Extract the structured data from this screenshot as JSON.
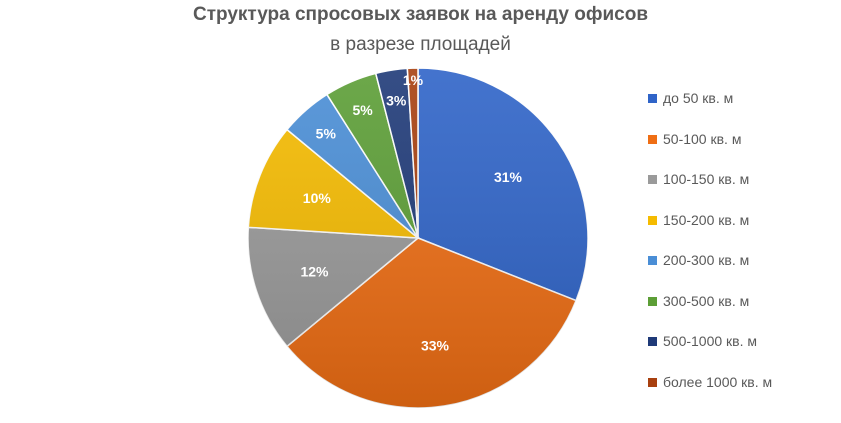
{
  "chart_data": {
    "type": "pie",
    "title": "Структура спросовых заявок на аренду офисов",
    "subtitle": "в разрезе площадей",
    "slices": [
      {
        "label": "до 50 кв. м",
        "value": 31,
        "display": "31%",
        "color": "#2f64c8"
      },
      {
        "label": "50-100 кв. м",
        "value": 33,
        "display": "33%",
        "color": "#ef6e14"
      },
      {
        "label": "100-150 кв. м",
        "value": 12,
        "display": "12%",
        "color": "#9a9a9a"
      },
      {
        "label": "150-200 кв. м",
        "value": 10,
        "display": "10%",
        "color": "#f5bb00"
      },
      {
        "label": "200-300 кв. м",
        "value": 5,
        "display": "5%",
        "color": "#4a8ed6"
      },
      {
        "label": "300-500 кв. м",
        "value": 5,
        "display": "5%",
        "color": "#5c9e36"
      },
      {
        "label": "500-1000 кв. м",
        "value": 3,
        "display": "3%",
        "color": "#1f3a78"
      },
      {
        "label": "более 1000 кв. м",
        "value": 1,
        "display": "1%",
        "color": "#a8400f"
      }
    ],
    "legend_position": "right",
    "start_angle": "12 o'clock",
    "direction": "clockwise"
  }
}
